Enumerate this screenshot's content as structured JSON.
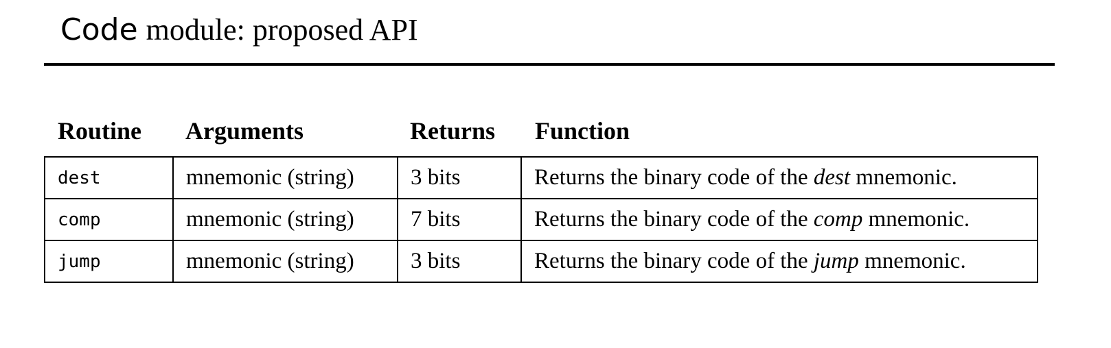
{
  "title": {
    "code": "Code",
    "rest": "module: proposed API"
  },
  "table": {
    "headers": [
      "Routine",
      "Arguments",
      "Returns",
      "Function"
    ],
    "rows": [
      {
        "routine": "dest",
        "arguments": "mnemonic (string)",
        "returns": "3 bits",
        "function_prefix": "Returns the binary code of the",
        "function_emph": "dest",
        "function_suffix": "mnemonic."
      },
      {
        "routine": "comp",
        "arguments": "mnemonic (string)",
        "returns": "7 bits",
        "function_prefix": "Returns the binary code of the",
        "function_emph": "comp",
        "function_suffix": "mnemonic."
      },
      {
        "routine": "jump",
        "arguments": "mnemonic (string)",
        "returns": "3 bits",
        "function_prefix": "Returns the binary code of the",
        "function_emph": "jump",
        "function_suffix": "mnemonic."
      }
    ]
  }
}
